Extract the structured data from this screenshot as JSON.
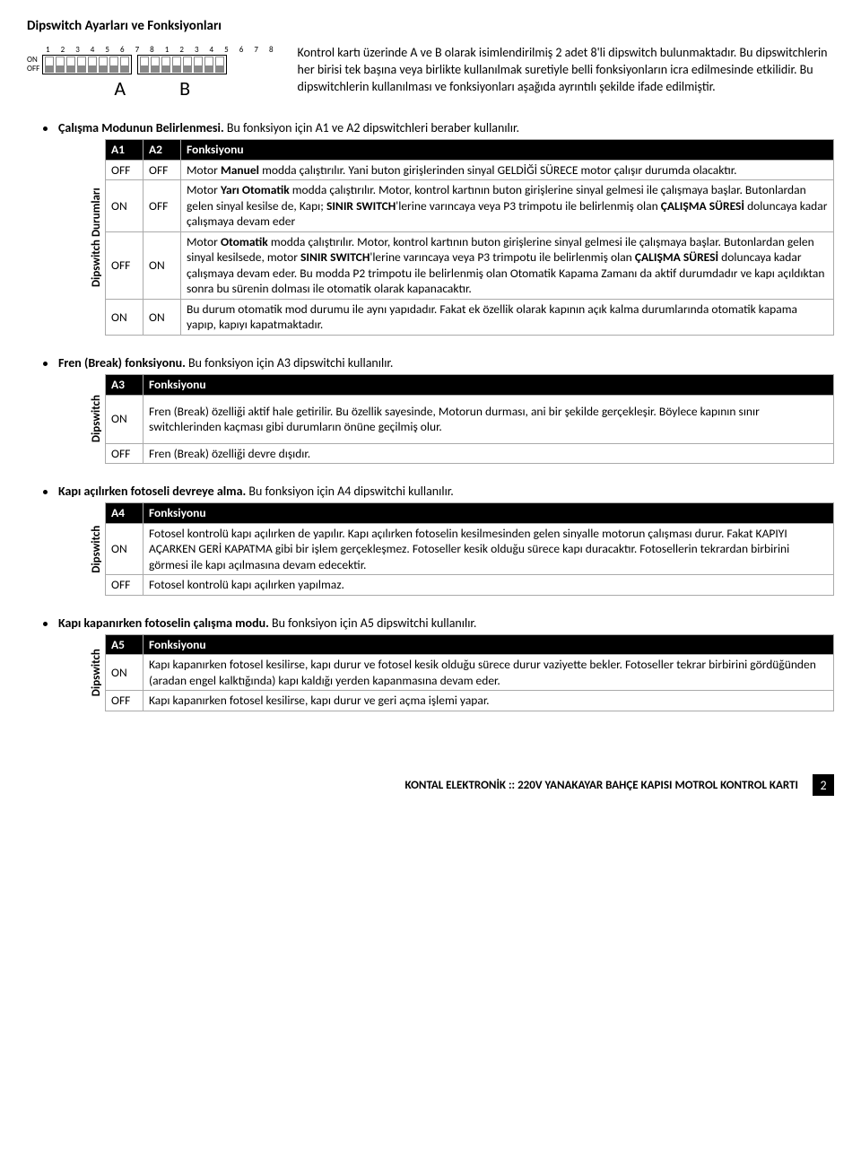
{
  "title": "Dipswitch Ayarları ve Fonksiyonları",
  "diagram": {
    "numbers": "1 2 3 4 5 6 7 8  1 2 3 4 5 6 7 8",
    "on": "ON",
    "off": "OFF",
    "labelA": "A",
    "labelB": "B"
  },
  "intro": "Kontrol kartı üzerinde A ve B olarak isimlendirilmiş 2 adet 8'li dipswitch bulunmaktadır. Bu dipswitchlerin her birisi tek başına veya birlikte kullanılmak suretiyle belli fonksiyonların icra edilmesinde etkilidir. Bu dipswitchlerin kullanılması ve fonksiyonları aşağıda ayrıntılı şekilde ifade edilmiştir.",
  "sec1": {
    "lead_bold": "Çalışma Modunun Belirlenmesi.",
    "lead_rest": " Bu fonksiyon için A1 ve A2 dipswitchleri beraber kullanılır.",
    "side": "Dipswitch Durumları",
    "h1": "A1",
    "h2": "A2",
    "h3": "Fonksiyonu",
    "r1c1": "OFF",
    "r1c2": "OFF",
    "r1c3": "Motor <b>Manuel</b> modda çalıştırılır. Yani buton girişlerinden sinyal GELDİĞİ SÜRECE motor çalışır durumda olacaktır.",
    "r2c1": "ON",
    "r2c2": "OFF",
    "r2c3": "Motor <b>Yarı Otomatik</b> modda çalıştırılır. Motor, kontrol kartının buton girişlerine sinyal gelmesi ile çalışmaya başlar. Butonlardan gelen sinyal kesilse de, Kapı;  <b>SINIR SWITCH</b>'lerine varıncaya veya P3 trimpotu ile belirlenmiş olan <b>ÇALIŞMA SÜRESİ</b> doluncaya kadar çalışmaya devam eder",
    "r3c1": "OFF",
    "r3c2": "ON",
    "r3c3": "Motor <b>Otomatik</b> modda çalıştırılır. Motor, kontrol kartının buton girişlerine sinyal gelmesi ile çalışmaya başlar. Butonlardan gelen sinyal kesilsede, motor <b>SINIR SWITCH</b>'lerine varıncaya veya P3 trimpotu ile belirlenmiş olan <b>ÇALIŞMA SÜRESİ</b> doluncaya kadar çalışmaya devam eder. Bu modda P2 trimpotu ile belirlenmiş olan Otomatik Kapama Zamanı da aktif durumdadır ve kapı açıldıktan sonra bu sürenin dolması ile otomatik olarak kapanacaktır.",
    "r4c1": "ON",
    "r4c2": "ON",
    "r4c3": "Bu durum otomatik mod durumu ile aynı yapıdadır. Fakat ek özellik olarak kapının açık kalma durumlarında otomatik kapama yapıp, kapıyı kapatmaktadır."
  },
  "sec2": {
    "lead_bold": "Fren (Break) fonksiyonu.",
    "lead_rest": " Bu fonksiyon için A3 dipswitchi kullanılır.",
    "side": "Dipswitch",
    "h1": "A3",
    "h2": "Fonksiyonu",
    "r1c1": "ON",
    "r1c2": "Fren (Break) özelliği aktif hale getirilir. Bu özellik sayesinde, Motorun durması, ani bir şekilde gerçekleşir. Böylece kapının sınır switchlerinden kaçması gibi durumların önüne geçilmiş olur.",
    "r2c1": "OFF",
    "r2c2": "Fren (Break) özelliği devre dışıdır."
  },
  "sec3": {
    "lead_bold": "Kapı açılırken fotoseli devreye alma.",
    "lead_rest": " Bu fonksiyon için A4 dipswitchi kullanılır.",
    "side": "Dipswitch",
    "h1": "A4",
    "h2": "Fonksiyonu",
    "r1c1": "ON",
    "r1c2": "Fotosel kontrolü kapı açılırken de yapılır. Kapı açılırken fotoselin kesilmesinden gelen sinyalle motorun çalışması durur. Fakat KAPIYI AÇARKEN GERİ KAPATMA gibi bir işlem gerçekleşmez. Fotoseller kesik olduğu sürece kapı duracaktır. Fotosellerin tekrardan birbirini görmesi ile kapı açılmasına devam edecektir.",
    "r2c1": "OFF",
    "r2c2": "Fotosel kontrolü kapı açılırken yapılmaz."
  },
  "sec4": {
    "lead_bold": "Kapı kapanırken fotoselin çalışma modu.",
    "lead_rest": " Bu fonksiyon için A5 dipswitchi kullanılır.",
    "side": "Dipswitch",
    "h1": "A5",
    "h2": "Fonksiyonu",
    "r1c1": "ON",
    "r1c2": "Kapı kapanırken fotosel kesilirse, kapı durur ve fotosel kesik olduğu sürece durur vaziyette bekler. Fotoseller tekrar birbirini gördüğünden (aradan engel kalktığında) kapı kaldığı yerden kapanmasına devam eder.",
    "r2c1": "OFF",
    "r2c2": "Kapı kapanırken fotosel kesilirse, kapı durur ve geri açma işlemi yapar."
  },
  "footer": {
    "text": "KONTAL ELEKTRONİK :: 220V YANAKAYAR BAHÇE KAPISI MOTROL KONTROL KARTI",
    "page": "2"
  }
}
